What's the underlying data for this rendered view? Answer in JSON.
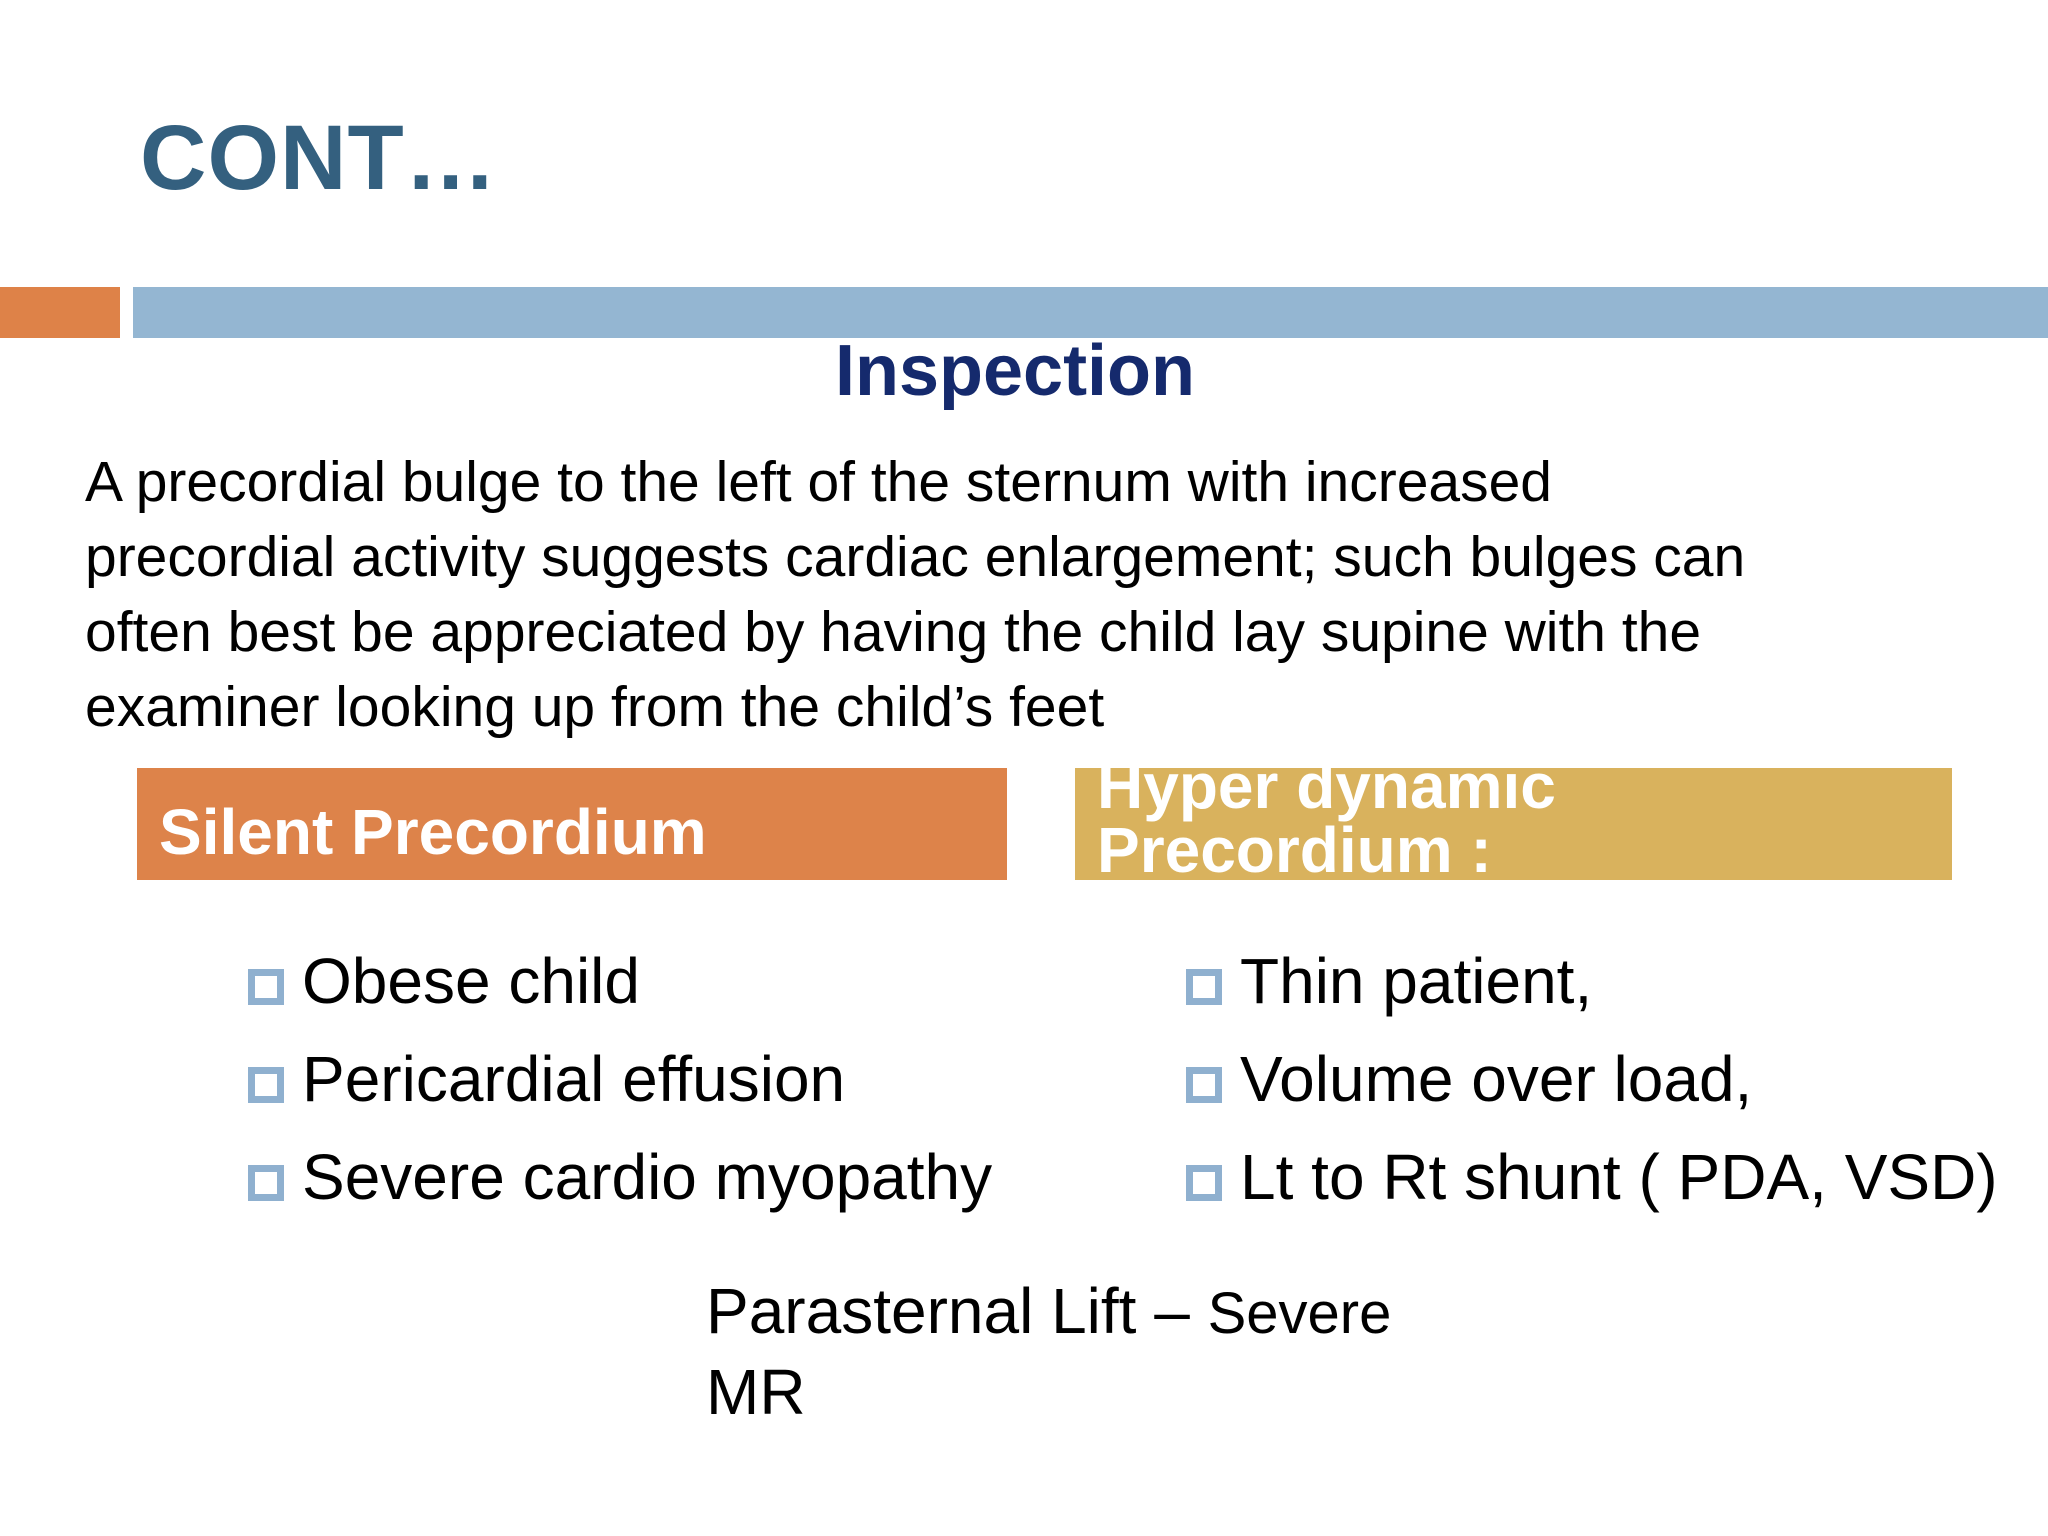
{
  "slide": {
    "title": "CONT…",
    "subtitle": "Inspection",
    "paragraph_lines": [
      "A precordial bulge to the left of the sternum with increased",
      "precordial activity suggests cardiac enlargement; such bulges can",
      "often best be appreciated by having the child lay supine with the",
      "examiner looking up from the child’s feet"
    ],
    "colors": {
      "title": "#34607f",
      "subtitle": "#152a6d",
      "accent_orange": "#de8248",
      "accent_blue": "#94b6d2",
      "header_left": "#dd834a",
      "header_right": "#d9b25d",
      "bullet": "#8fb0cf"
    }
  },
  "left_column": {
    "header": "Silent Precordium",
    "bullets": [
      "Obese child",
      "Pericardial effusion",
      "Severe cardio myopathy"
    ]
  },
  "right_column": {
    "header_lines": [
      "Hyper dynamic",
      "Precordium :"
    ],
    "bullets": [
      "Thin patient,",
      "Volume over load,",
      "Lt to Rt shunt ( PDA, VSD)"
    ]
  },
  "footnote": {
    "line1": "Parasternal Lift –",
    "line1_tail": "Severe",
    "line2": "MR"
  },
  "icons": {
    "bullet": "hollow-square-bullet-icon"
  }
}
